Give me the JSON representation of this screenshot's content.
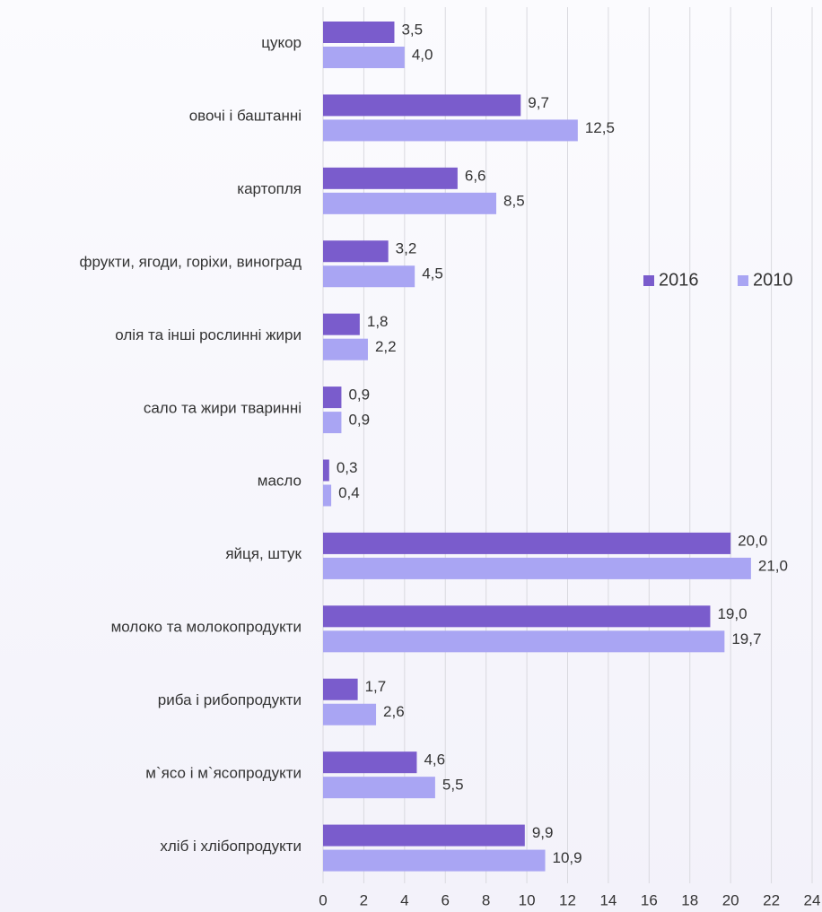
{
  "chart_data": {
    "type": "barh",
    "categories": [
      "цукор",
      "овочі і баштанні",
      "картопля",
      "фрукти, ягоди, горіхи, виноград",
      "олія та інші рослинні жири",
      "сало та жири тваринні",
      "масло",
      "яйця, штук",
      "молоко та молокопродукти",
      "риба і рибопродукти",
      "м`ясо і м`ясопродукти",
      "хліб і хлібопродукти"
    ],
    "series": [
      {
        "name": "2016",
        "color": "#7a5ccc",
        "values": [
          3.5,
          9.7,
          6.6,
          3.2,
          1.8,
          0.9,
          0.3,
          20.0,
          19.0,
          1.7,
          4.6,
          9.9
        ],
        "value_labels": [
          "3,5",
          "9,7",
          "6,6",
          "3,2",
          "1,8",
          "0,9",
          "0,3",
          "20,0",
          "19,0",
          "1,7",
          "4,6",
          "9,9"
        ]
      },
      {
        "name": "2010",
        "color": "#a9a5f3",
        "values": [
          4.0,
          12.5,
          8.5,
          4.5,
          2.2,
          0.9,
          0.4,
          21.0,
          19.7,
          2.6,
          5.5,
          10.9
        ],
        "value_labels": [
          "4,0",
          "12,5",
          "8,5",
          "4,5",
          "2,2",
          "0,9",
          "0,4",
          "21,0",
          "19,7",
          "2,6",
          "5,5",
          "10,9"
        ]
      }
    ],
    "xlim": [
      0,
      24
    ],
    "xticks": [
      0,
      2,
      4,
      6,
      8,
      10,
      12,
      14,
      16,
      18,
      20,
      22,
      24
    ],
    "grid": true,
    "legend": "right"
  }
}
